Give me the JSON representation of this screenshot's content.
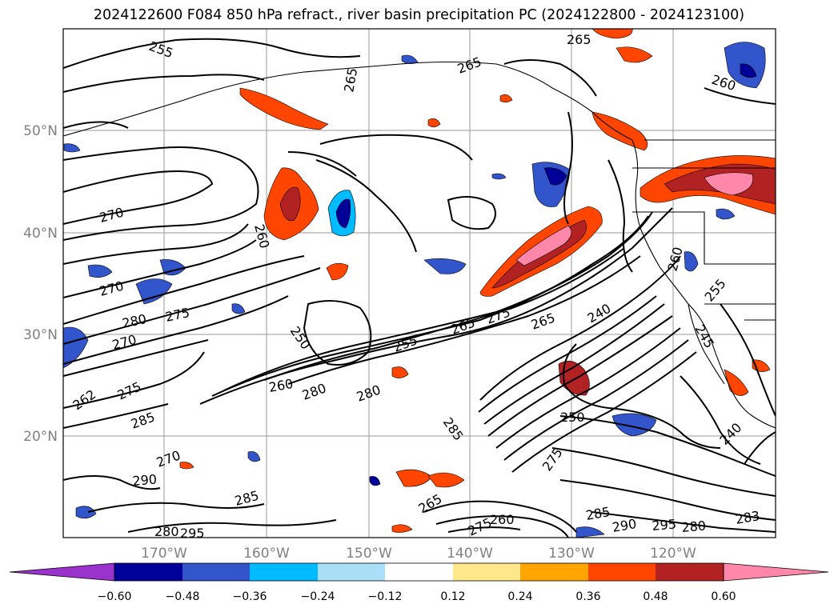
{
  "title": "2024122600 F084 850 hPa refract., river basin precipitation PC (2024122800 - 2024123100)",
  "lat_ticks": [
    "50°N",
    "40°N",
    "30°N",
    "20°N"
  ],
  "lon_ticks": [
    "170°W",
    "160°W",
    "150°W",
    "140°W",
    "130°W",
    "120°W"
  ],
  "contour_labels": [
    "255",
    "265",
    "265",
    "265",
    "260",
    "270",
    "260",
    "270",
    "280",
    "275",
    "270",
    "250",
    "255",
    "265",
    "275",
    "265",
    "240",
    "260",
    "280",
    "280",
    "245",
    "255",
    "260",
    "262",
    "275",
    "285",
    "250",
    "240",
    "275",
    "270",
    "285",
    "290",
    "285",
    "265",
    "260",
    "275",
    "285",
    "290",
    "295",
    "280",
    "283",
    "280",
    "295"
  ],
  "colorbar": {
    "ticks": [
      "−0.60",
      "−0.48",
      "−0.36",
      "−0.24",
      "−0.12",
      "0.12",
      "0.24",
      "0.36",
      "0.48",
      "0.60"
    ],
    "colors": {
      "under": "#9933cc",
      "levels": [
        "#000099",
        "#3355cc",
        "#00bbff",
        "#aadffa",
        "#ffffff",
        "#ffe78a",
        "#ffa500",
        "#ff4500",
        "#b22222",
        "#ff88aa"
      ],
      "over": "#ff88aa"
    }
  }
}
